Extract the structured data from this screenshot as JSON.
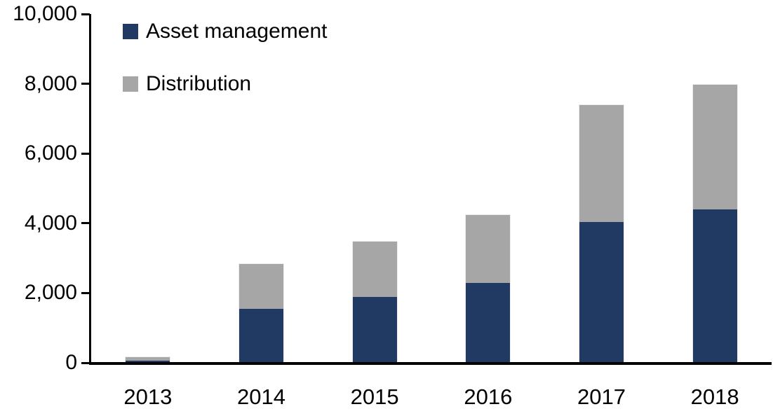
{
  "chart_data": {
    "type": "bar",
    "stacked": true,
    "title": "",
    "xlabel": "",
    "ylabel": "",
    "grid": false,
    "legend_position": "top-left",
    "ylim": [
      0,
      10000
    ],
    "categories": [
      "2013",
      "2014",
      "2015",
      "2016",
      "2017",
      "2018"
    ],
    "series": [
      {
        "name": "Asset management",
        "color": "#213a63",
        "values": [
          75,
          1550,
          1900,
          2300,
          4050,
          4400
        ]
      },
      {
        "name": "Distribution",
        "color": "#a6a6a6",
        "values": [
          110,
          1300,
          1600,
          1950,
          3350,
          3600
        ]
      }
    ],
    "totals": [
      185,
      2850,
      3500,
      4250,
      7400,
      8000
    ],
    "y_ticks": [
      {
        "value": 0,
        "label": "0"
      },
      {
        "value": 2000,
        "label": "2,000"
      },
      {
        "value": 4000,
        "label": "4,000"
      },
      {
        "value": 6000,
        "label": "6,000"
      },
      {
        "value": 8000,
        "label": "8,000"
      },
      {
        "value": 10000,
        "label": "10,000"
      }
    ],
    "axis_color": "#000000",
    "text_color": "#000000",
    "background_color": "#ffffff"
  }
}
